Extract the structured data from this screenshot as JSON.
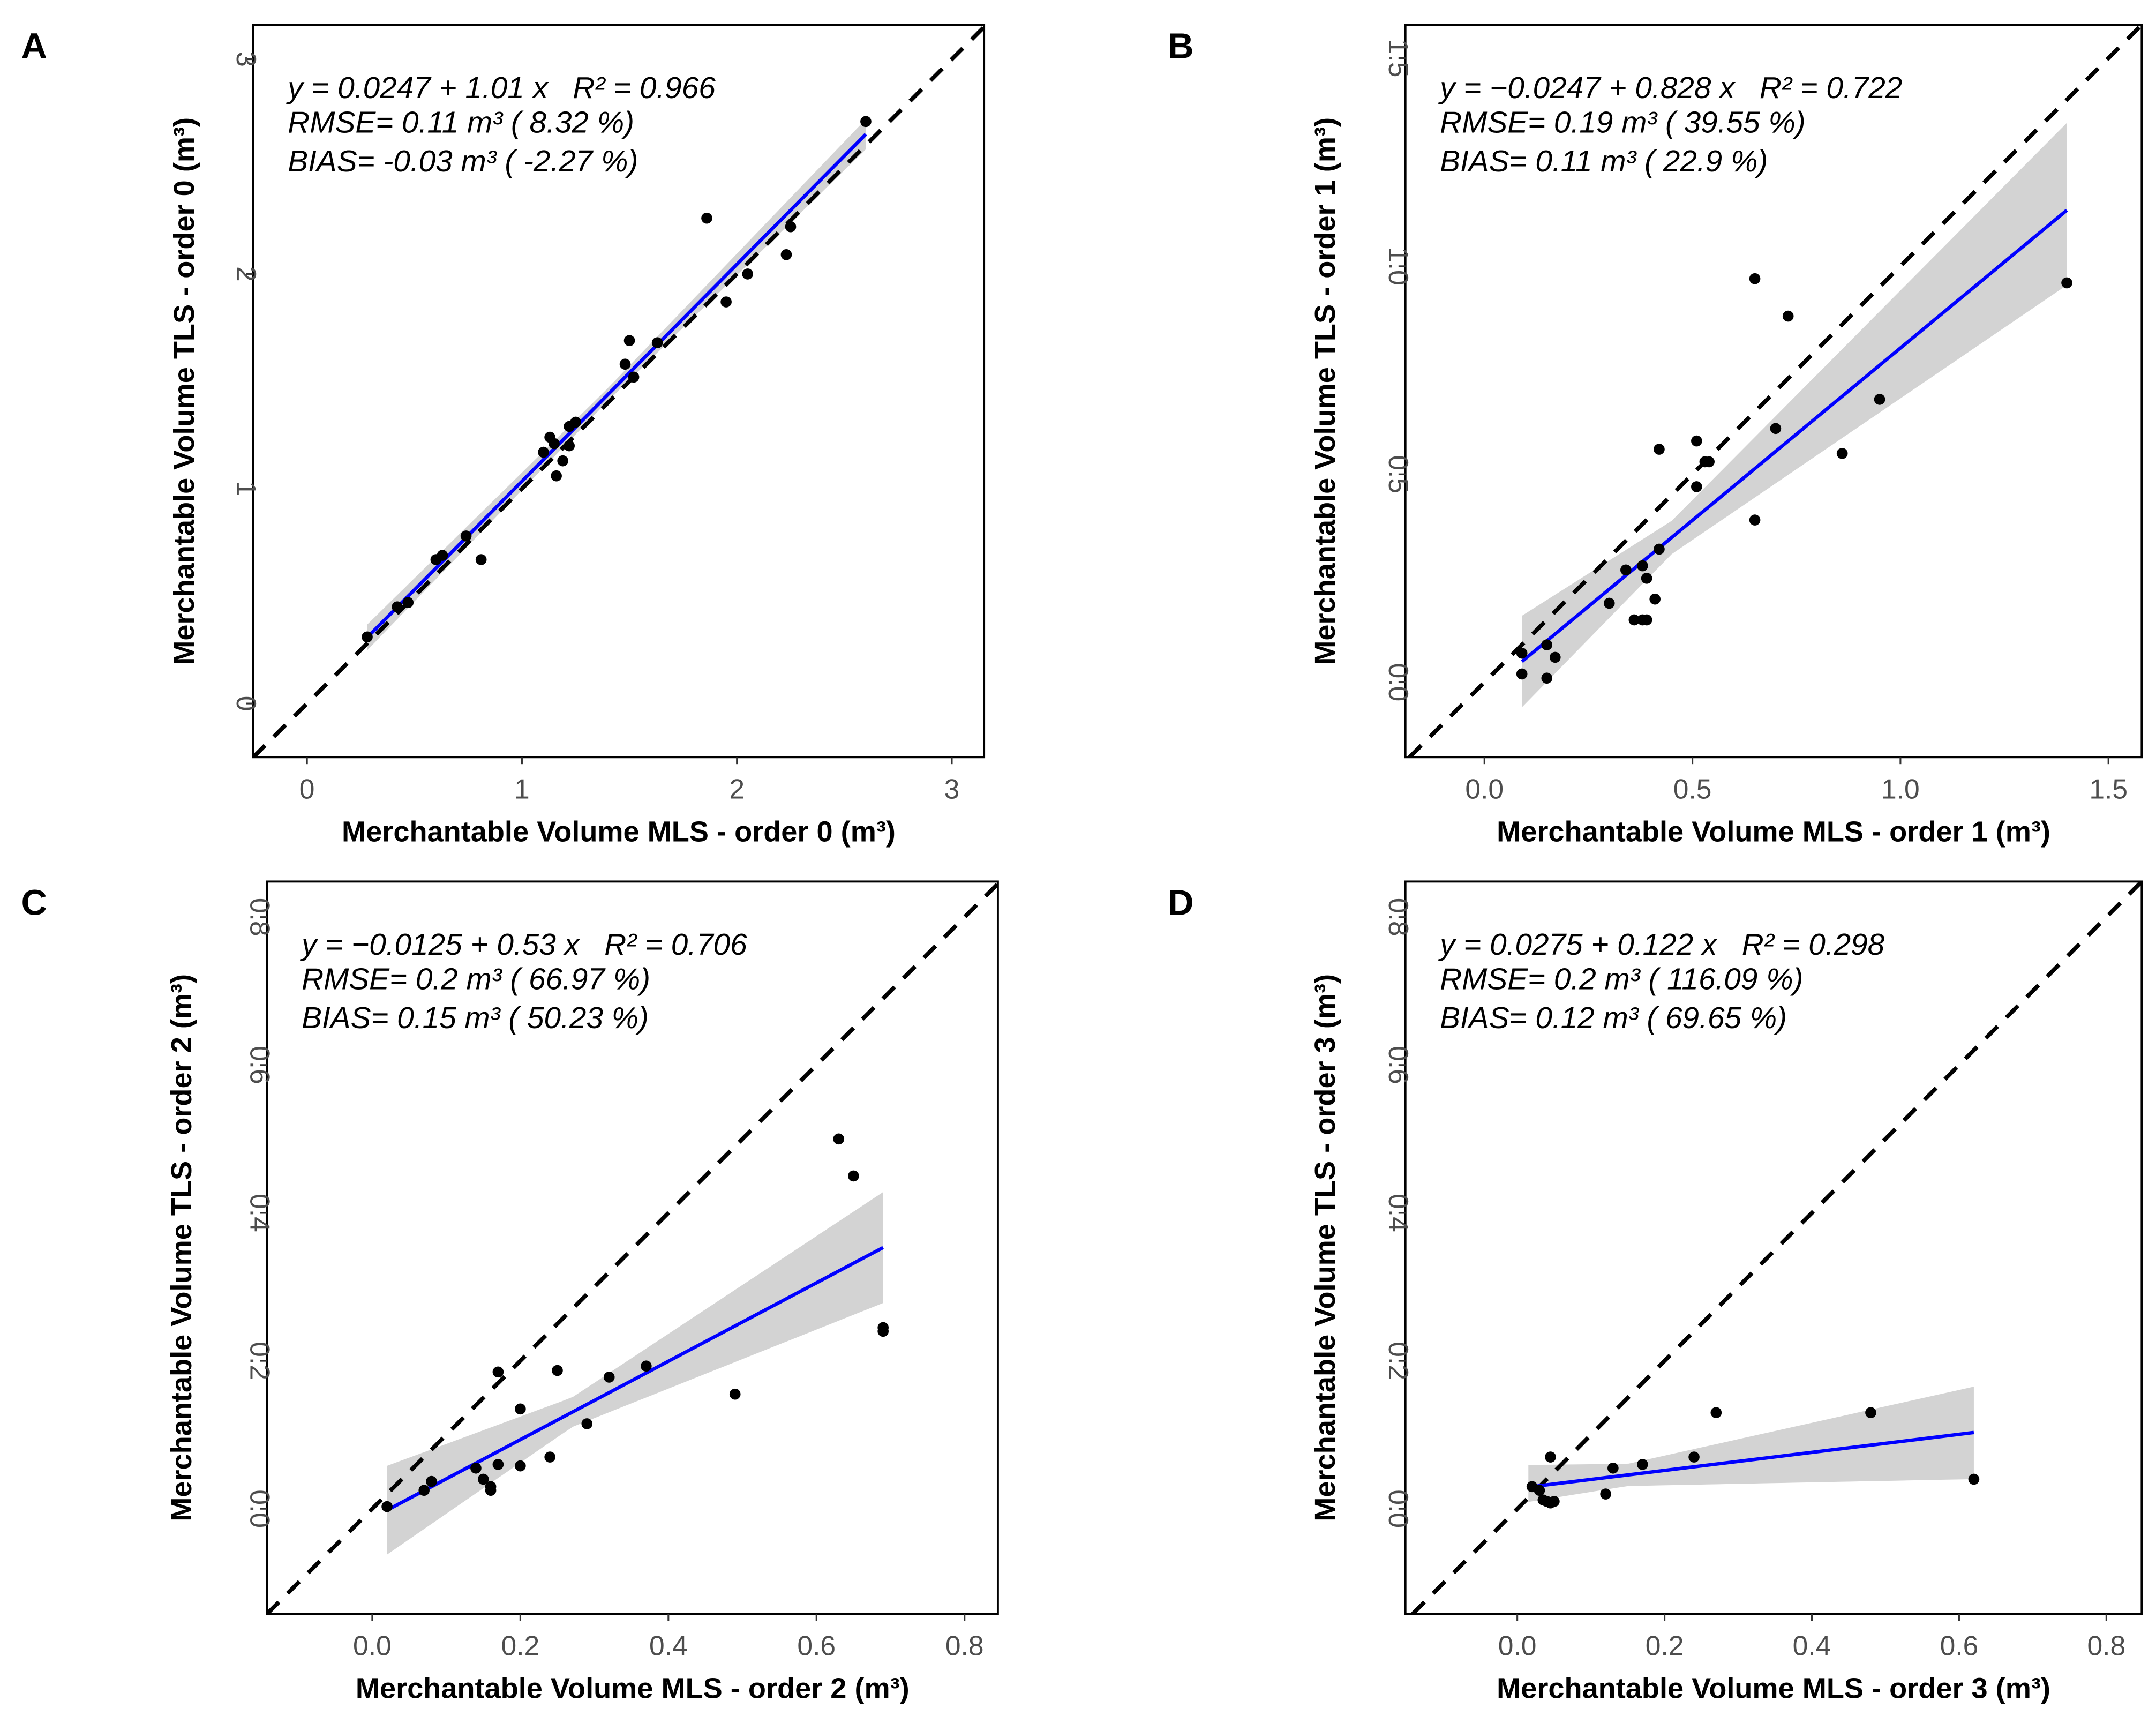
{
  "colors": {
    "points": "#000000",
    "fit_line": "#0000ff",
    "ribbon": "#d3d3d3",
    "identity_line": "#000000"
  },
  "chart_data": [
    {
      "type": "scatter",
      "panel": "A",
      "xlabel": "Merchantable Volume MLS - order 0 (m³)",
      "ylabel": "Merchantable Volume TLS - order 0 (m³)",
      "xlim": [
        -0.25,
        3.15
      ],
      "ylim": [
        -0.25,
        3.16
      ],
      "xticks": [
        0,
        1,
        2,
        3
      ],
      "yticks": [
        0,
        1,
        2,
        3
      ],
      "xtick_labels": [
        "0",
        "1",
        "2",
        "3"
      ],
      "ytick_labels": [
        "0",
        "1",
        "2",
        "3"
      ],
      "annotation": {
        "eq": "y = 0.0247 + 1.01 x",
        "r2": "R² = 0.966",
        "rmse": "RMSE=  0.11 m³ ( 8.32 %)",
        "bias": "BIAS=  -0.03 m³ ( -2.27 %)"
      },
      "fit": {
        "intercept": 0.0247,
        "slope": 1.01,
        "x_range": [
          0.28,
          2.6
        ]
      },
      "ribbon": {
        "x": [
          0.28,
          1.4,
          2.6
        ],
        "lower": [
          -0.06,
          -0.03,
          -0.07
        ],
        "upper": [
          0.06,
          0.03,
          0.07
        ]
      },
      "points": [
        [
          0.28,
          0.31
        ],
        [
          0.42,
          0.45
        ],
        [
          0.47,
          0.47
        ],
        [
          0.6,
          0.67
        ],
        [
          0.63,
          0.69
        ],
        [
          0.74,
          0.78
        ],
        [
          0.81,
          0.67
        ],
        [
          1.1,
          1.17
        ],
        [
          1.13,
          1.24
        ],
        [
          1.15,
          1.21
        ],
        [
          1.16,
          1.06
        ],
        [
          1.19,
          1.13
        ],
        [
          1.22,
          1.2
        ],
        [
          1.22,
          1.29
        ],
        [
          1.25,
          1.31
        ],
        [
          1.48,
          1.58
        ],
        [
          1.5,
          1.69
        ],
        [
          1.52,
          1.52
        ],
        [
          1.63,
          1.68
        ],
        [
          1.86,
          2.26
        ],
        [
          1.95,
          1.87
        ],
        [
          2.05,
          2.0
        ],
        [
          2.23,
          2.09
        ],
        [
          2.25,
          2.22
        ],
        [
          2.6,
          2.71
        ]
      ]
    },
    {
      "type": "scatter",
      "panel": "B",
      "xlabel": "Merchantable Volume MLS - order 1 (m³)",
      "ylabel": "Merchantable Volume TLS - order 1 (m³)",
      "xlim": [
        -0.19,
        1.58
      ],
      "ylim": [
        -0.18,
        1.58
      ],
      "xticks": [
        0,
        0.5,
        1.0,
        1.5
      ],
      "yticks": [
        0,
        0.5,
        1.0,
        1.5
      ],
      "xtick_labels": [
        "0.0",
        "0.5",
        "1.0",
        "1.5"
      ],
      "ytick_labels": [
        "0.0",
        "0.5",
        "1.0",
        "1.5"
      ],
      "annotation": {
        "eq": "y = −0.0247 + 0.828 x",
        "r2": "R² = 0.722",
        "rmse": "RMSE=  0.19 m³ ( 39.55 %)",
        "bias": "BIAS=  0.11 m³ ( 22.9 %)"
      },
      "fit": {
        "intercept": -0.0247,
        "slope": 0.828,
        "x_range": [
          0.09,
          1.4
        ]
      },
      "ribbon": {
        "x": [
          0.09,
          0.45,
          1.4
        ],
        "lower": [
          -0.11,
          -0.04,
          -0.18
        ],
        "upper": [
          0.11,
          0.04,
          0.21
        ]
      },
      "points": [
        [
          0.09,
          0.02
        ],
        [
          0.09,
          0.07
        ],
        [
          0.15,
          0.01
        ],
        [
          0.15,
          0.09
        ],
        [
          0.17,
          0.06
        ],
        [
          0.3,
          0.19
        ],
        [
          0.34,
          0.27
        ],
        [
          0.36,
          0.15
        ],
        [
          0.38,
          0.15
        ],
        [
          0.39,
          0.15
        ],
        [
          0.38,
          0.28
        ],
        [
          0.39,
          0.25
        ],
        [
          0.41,
          0.2
        ],
        [
          0.42,
          0.32
        ],
        [
          0.42,
          0.56
        ],
        [
          0.51,
          0.47
        ],
        [
          0.51,
          0.58
        ],
        [
          0.53,
          0.53
        ],
        [
          0.54,
          0.53
        ],
        [
          0.65,
          0.39
        ],
        [
          0.65,
          0.97
        ],
        [
          0.7,
          0.61
        ],
        [
          0.73,
          0.88
        ],
        [
          0.86,
          0.55
        ],
        [
          0.95,
          0.68
        ],
        [
          1.4,
          0.96
        ]
      ]
    },
    {
      "type": "scatter",
      "panel": "C",
      "xlabel": "Merchantable Volume MLS - order 2 (m³)",
      "ylabel": "Merchantable Volume TLS - order 2 (m³)",
      "xlim": [
        -0.142,
        0.845
      ],
      "ylim": [
        -0.142,
        0.848
      ],
      "xticks": [
        0,
        0.2,
        0.4,
        0.6,
        0.8
      ],
      "yticks": [
        0,
        0.2,
        0.4,
        0.6,
        0.8
      ],
      "xtick_labels": [
        "0.0",
        "0.2",
        "0.4",
        "0.6",
        "0.8"
      ],
      "ytick_labels": [
        "0.0",
        "0.2",
        "0.4",
        "0.6",
        "0.8"
      ],
      "annotation": {
        "eq": "y = −0.0125 + 0.53 x",
        "r2": "R² = 0.706",
        "rmse": "RMSE=  0.2 m³ ( 66.97 %)",
        "bias": "BIAS=  0.15 m³ ( 50.23 %)"
      },
      "fit": {
        "intercept": -0.0125,
        "slope": 0.53,
        "x_range": [
          0.02,
          0.69
        ]
      },
      "ribbon": {
        "x": [
          0.02,
          0.27,
          0.69
        ],
        "lower": [
          -0.06,
          -0.02,
          -0.075
        ],
        "upper": [
          0.06,
          0.02,
          0.075
        ]
      },
      "points": [
        [
          0.02,
          0.003
        ],
        [
          0.07,
          0.025
        ],
        [
          0.08,
          0.037
        ],
        [
          0.14,
          0.055
        ],
        [
          0.15,
          0.04
        ],
        [
          0.16,
          0.025
        ],
        [
          0.16,
          0.03
        ],
        [
          0.17,
          0.06
        ],
        [
          0.17,
          0.185
        ],
        [
          0.2,
          0.135
        ],
        [
          0.2,
          0.058
        ],
        [
          0.24,
          0.07
        ],
        [
          0.25,
          0.187
        ],
        [
          0.29,
          0.115
        ],
        [
          0.32,
          0.178
        ],
        [
          0.37,
          0.193
        ],
        [
          0.49,
          0.155
        ],
        [
          0.63,
          0.5
        ],
        [
          0.65,
          0.45
        ],
        [
          0.69,
          0.24
        ],
        [
          0.69,
          0.245
        ]
      ]
    },
    {
      "type": "scatter",
      "panel": "D",
      "xlabel": "Merchantable Volume MLS - order 3 (m³)",
      "ylabel": "Merchantable Volume TLS - order 3 (m³)",
      "xlim": [
        -0.152,
        0.848
      ],
      "ylim": [
        -0.142,
        0.848
      ],
      "xticks": [
        0,
        0.2,
        0.4,
        0.6,
        0.8
      ],
      "yticks": [
        0,
        0.2,
        0.4,
        0.6,
        0.8
      ],
      "xtick_labels": [
        "0.0",
        "0.2",
        "0.4",
        "0.6",
        "0.8"
      ],
      "ytick_labels": [
        "0.0",
        "0.2",
        "0.4",
        "0.6",
        "0.8"
      ],
      "annotation": {
        "eq": "y = 0.0275 + 0.122 x",
        "r2": "R² = 0.298",
        "rmse": "RMSE=  0.2 m³ ( 116.09 %)",
        "bias": "BIAS=  0.12 m³ ( 69.65 %)"
      },
      "fit": {
        "intercept": 0.0275,
        "slope": 0.122,
        "x_range": [
          0.015,
          0.62
        ]
      },
      "ribbon": {
        "x": [
          0.015,
          0.15,
          0.62
        ],
        "lower": [
          -0.02,
          -0.015,
          -0.063
        ],
        "upper": [
          0.03,
          0.015,
          0.062
        ]
      },
      "points": [
        [
          0.02,
          0.03
        ],
        [
          0.03,
          0.025
        ],
        [
          0.035,
          0.012
        ],
        [
          0.04,
          0.01
        ],
        [
          0.045,
          0.008
        ],
        [
          0.05,
          0.01
        ],
        [
          0.045,
          0.07
        ],
        [
          0.12,
          0.02
        ],
        [
          0.13,
          0.055
        ],
        [
          0.17,
          0.06
        ],
        [
          0.24,
          0.07
        ],
        [
          0.27,
          0.13
        ],
        [
          0.48,
          0.13
        ],
        [
          0.62,
          0.04
        ]
      ]
    }
  ]
}
